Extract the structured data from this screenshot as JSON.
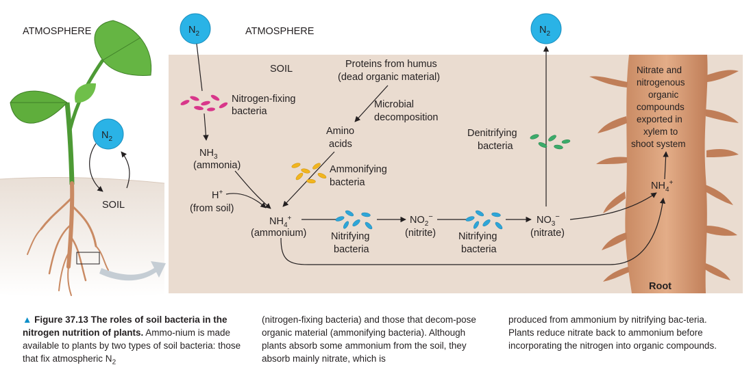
{
  "labels": {
    "atmosphere_left": "ATMOSPHERE",
    "atmosphere_center": "ATMOSPHERE",
    "soil_left": "SOIL",
    "soil_main": "SOIL",
    "n2": "N",
    "n2_sub": "2",
    "proteins_l1": "Proteins from humus",
    "proteins_l2": "(dead organic material)",
    "microbial_l1": "Microbial",
    "microbial_l2": "decomposition",
    "amino_l1": "Amino",
    "amino_l2": "acids",
    "nfix_l1": "Nitrogen-fixing",
    "nfix_l2": "bacteria",
    "nh3": "NH",
    "nh3_sub": "3",
    "ammonia": "(ammonia)",
    "hplus": "H",
    "hplus_sup": "+",
    "from_soil": "(from soil)",
    "ammonifying_l1": "Ammonifying",
    "ammonifying_l2": "bacteria",
    "nh4": "NH",
    "nh4_sub": "4",
    "nh4_sup": "+",
    "ammonium": "(ammonium)",
    "nitrifying_a_l1": "Nitrifying",
    "nitrifying_a_l2": "bacteria",
    "no2": "NO",
    "no2_sub": "2",
    "no2_sup": "−",
    "nitrite": "(nitrite)",
    "nitrifying_b_l1": "Nitrifying",
    "nitrifying_b_l2": "bacteria",
    "no3": "NO",
    "no3_sub": "3",
    "no3_sup": "−",
    "nitrate": "(nitrate)",
    "denitrifying_l1": "Denitrifying",
    "denitrifying_l2": "bacteria",
    "export_l1": "Nitrate and",
    "export_l2": "nitrogenous",
    "export_l3": "organic",
    "export_l4": "compounds",
    "export_l5": "exported in",
    "export_l6": "xylem to",
    "export_l7": "shoot system",
    "root_nh4": "NH",
    "root_nh4_sub": "4",
    "root_nh4_sup": "+",
    "root": "Root"
  },
  "caption": {
    "marker": "▲",
    "title": "Figure 37.13 The roles of soil bacteria in the nitrogen nutrition of plants.",
    "col1_text": "Ammo-nium is made available to plants by two types of soil bacteria: those that fix atmospheric N",
    "col1_sub": "2",
    "col2_text": "(nitrogen-fixing bacteria) and those that decom-pose organic material (ammonifying bacteria). Although plants absorb some ammonium from the soil, they absorb mainly nitrate, which is",
    "col3_text": "produced from ammonium by nitrifying bac-teria. Plants reduce nitrate back to ammonium before incorporating the nitrogen into organic compounds."
  },
  "colors": {
    "soil_panel": "#eadcd0",
    "n2_circle": "#2ab3e6",
    "nitrogen_fixing_bacteria": "#d8368a",
    "ammonifying_bacteria": "#f1b51f",
    "nitrifying_bacteria": "#2ea6d8",
    "denitrifying_bacteria": "#3bab6a",
    "root": "#d9a07a",
    "leaf": "#5fae3c",
    "caption_marker": "#0d8fc9"
  },
  "icons": [
    "n2-circle-icon",
    "bacteria-cluster-icon",
    "plant-icon",
    "root-icon",
    "arrow-icon"
  ]
}
